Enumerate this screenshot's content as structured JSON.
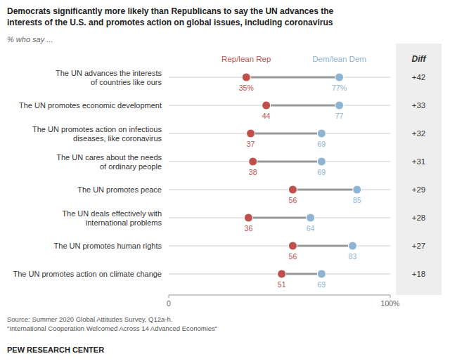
{
  "chart_data": {
    "type": "dumbbell",
    "title": "Democrats significantly more likely than Republicans to say the UN advances the\ninterests of the U.S. and promotes action on global issues, including coronavirus",
    "subtitle": "% who say ...",
    "categories": [
      "The UN advances the interests\nof countries like ours",
      "The UN promotes economic development",
      "The UN promotes action on infectious\ndiseases, like coronavirus",
      "The UN cares about the needs\nof ordinary people",
      "The UN promotes peace",
      "The UN deals effectively with\ninternational problems",
      "The UN promotes human rights",
      "The UN promotes action on climate change"
    ],
    "series": [
      {
        "name": "Rep/lean Rep",
        "color": "#c0504d",
        "values": [
          35,
          44,
          37,
          38,
          56,
          36,
          56,
          51
        ],
        "value_labels": [
          "35%",
          "44",
          "37",
          "38",
          "56",
          "36",
          "56",
          "51"
        ]
      },
      {
        "name": "Dem/lean Dem",
        "color": "#8eb4d4",
        "values": [
          77,
          77,
          69,
          69,
          85,
          64,
          83,
          69
        ],
        "value_labels": [
          "77%",
          "77",
          "69",
          "69",
          "85",
          "64",
          "83",
          "69"
        ]
      }
    ],
    "diff_title": "Diff",
    "diff_labels": [
      "+42",
      "+33",
      "+32",
      "+31",
      "+29",
      "+28",
      "+27",
      "+18"
    ],
    "xlim": [
      0,
      100
    ],
    "xticks": [
      0,
      {
        "value": 100,
        "label": "100%"
      }
    ],
    "data_labels": true,
    "source": "Source: Summer 2020 Global Attitudes Survey, Q12a-h.\n\"International Cooperation Welcomed Across 14 Advanced Economies\"",
    "credit": "PEW RESEARCH CENTER"
  }
}
